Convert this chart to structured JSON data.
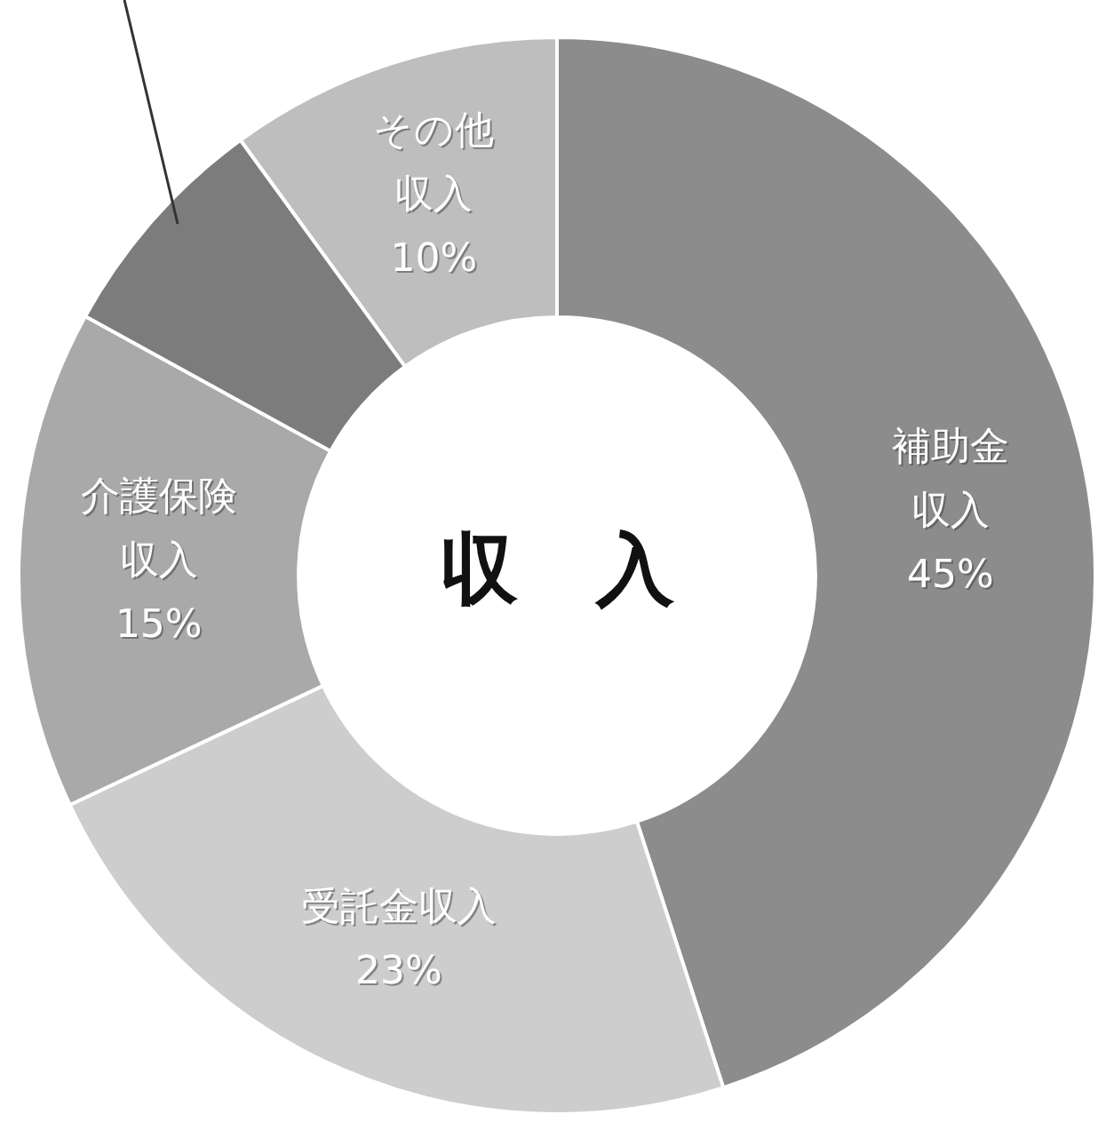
{
  "chart_data": {
    "type": "donut",
    "title": "収　入",
    "categories": [
      "補助金収入",
      "受託金収入",
      "介護保険収入",
      null,
      "その他収入"
    ],
    "values": [
      45,
      23,
      15,
      7,
      10
    ],
    "colors": [
      "#8c8c8c",
      "#cdcdcd",
      "#a9a9a9",
      "#7c7c7c",
      "#bebebe"
    ],
    "value_labels": [
      "45%",
      "23%",
      "15%",
      null,
      "10%"
    ],
    "legend": false
  }
}
